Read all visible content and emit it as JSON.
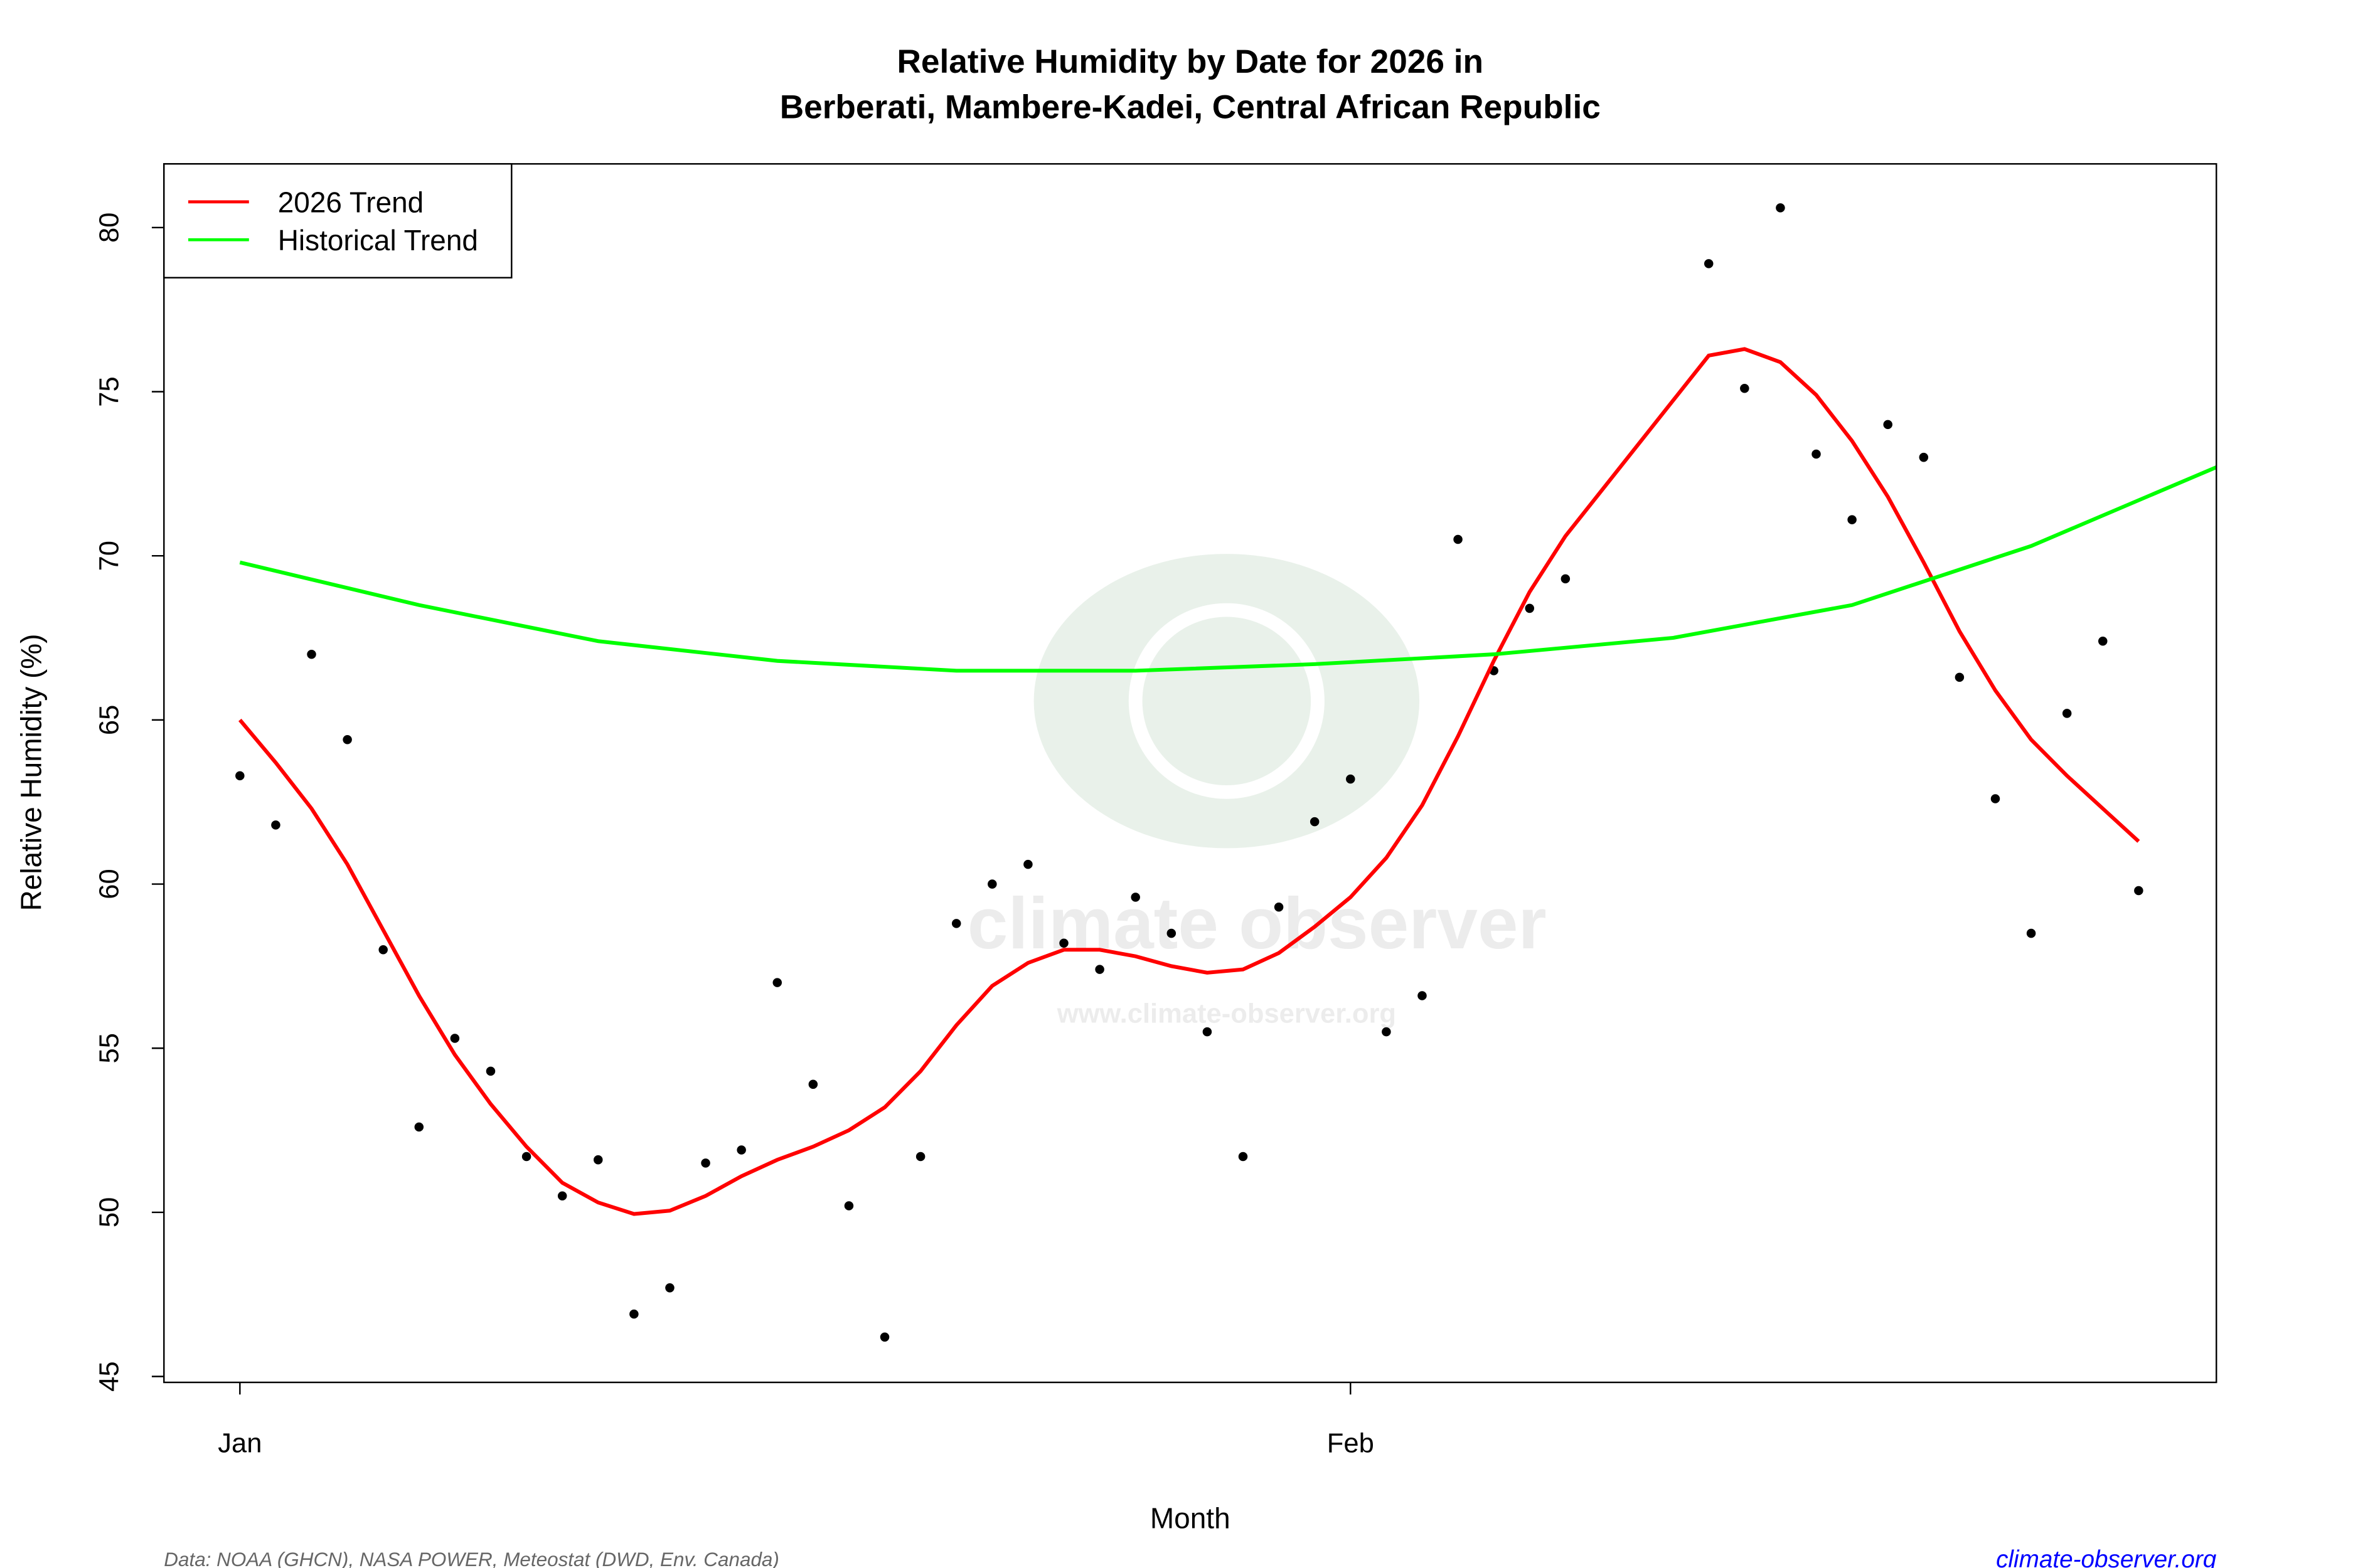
{
  "chart_data": {
    "type": "scatter",
    "title": [
      "Relative Humidity by Date for 2026 in",
      "Berberati, Mambere-Kadei, Central African Republic"
    ],
    "x_label": "Month",
    "y_label": "Relative Humidity (%)",
    "xlim": [
      -2.12,
      55.17
    ],
    "ylim": [
      44.82,
      81.94
    ],
    "xticks": [
      {
        "value": 0,
        "label": "Jan"
      },
      {
        "value": 31,
        "label": "Feb"
      }
    ],
    "yticks": [
      45,
      50,
      55,
      60,
      65,
      70,
      75,
      80
    ],
    "legend": "top-left",
    "series": [
      {
        "type": "scatter",
        "color": "#000000",
        "x": [
          0,
          1,
          2,
          3,
          4,
          5,
          6,
          7,
          8,
          9,
          10,
          11,
          12,
          13,
          14,
          15,
          16,
          17,
          18,
          19,
          20,
          21,
          22,
          23,
          24,
          25,
          26,
          27,
          28,
          29,
          30,
          31,
          32,
          33,
          34,
          35,
          36,
          37,
          41,
          42,
          43,
          44,
          45,
          46,
          47,
          48,
          49,
          50,
          51,
          52,
          53
        ],
        "values": [
          63.3,
          61.8,
          67.0,
          64.4,
          58.0,
          52.6,
          55.3,
          54.3,
          51.7,
          50.5,
          51.6,
          46.9,
          47.7,
          51.5,
          51.9,
          57.0,
          53.9,
          50.2,
          46.2,
          51.7,
          58.8,
          60.0,
          60.6,
          58.2,
          57.4,
          59.6,
          58.5,
          55.5,
          51.7,
          59.3,
          61.9,
          63.2,
          55.5,
          56.6,
          70.5,
          66.5,
          68.4,
          69.3,
          78.9,
          75.1,
          80.6,
          73.1,
          71.1,
          74.0,
          73.0,
          66.3,
          62.6,
          58.5,
          65.2,
          67.4,
          59.8
        ]
      },
      {
        "type": "line",
        "name": "2026 Trend",
        "color": "#ff0000",
        "x": [
          0,
          1,
          2,
          3,
          4,
          5,
          6,
          7,
          8,
          9,
          10,
          11,
          12,
          13,
          14,
          15,
          16,
          17,
          18,
          19,
          20,
          21,
          22,
          23,
          24,
          25,
          26,
          27,
          28,
          29,
          30,
          31,
          32,
          33,
          34,
          35,
          36,
          37,
          41,
          42,
          43,
          44,
          45,
          46,
          47,
          48,
          49,
          50,
          51,
          52,
          53
        ],
        "values": [
          65.0,
          63.7,
          62.3,
          60.6,
          58.6,
          56.6,
          54.8,
          53.3,
          52.0,
          50.9,
          50.3,
          49.95,
          50.05,
          50.5,
          51.1,
          51.6,
          52.0,
          52.5,
          53.2,
          54.3,
          55.7,
          56.9,
          57.6,
          58.0,
          58.0,
          57.8,
          57.5,
          57.3,
          57.4,
          57.9,
          58.7,
          59.6,
          60.8,
          62.4,
          64.5,
          66.8,
          68.9,
          70.6,
          76.1,
          76.3,
          75.9,
          74.9,
          73.5,
          71.8,
          69.8,
          67.7,
          65.9,
          64.4,
          63.3,
          62.3,
          61.3
        ]
      },
      {
        "type": "line",
        "name": "Historical Trend",
        "color": "#00ff00",
        "x": [
          0,
          5,
          10,
          15,
          20,
          25,
          30,
          35,
          40,
          45,
          50,
          55.17
        ],
        "values": [
          69.8,
          68.5,
          67.4,
          66.8,
          66.5,
          66.5,
          66.7,
          67.0,
          67.5,
          68.5,
          70.3,
          72.7
        ]
      }
    ],
    "watermark": [
      "climate observer",
      "www.climate-observer.org"
    ],
    "source": "Data: NOAA (GHCN), NASA POWER, Meteostat (DWD, Env. Canada)",
    "site": "climate-observer.org"
  }
}
